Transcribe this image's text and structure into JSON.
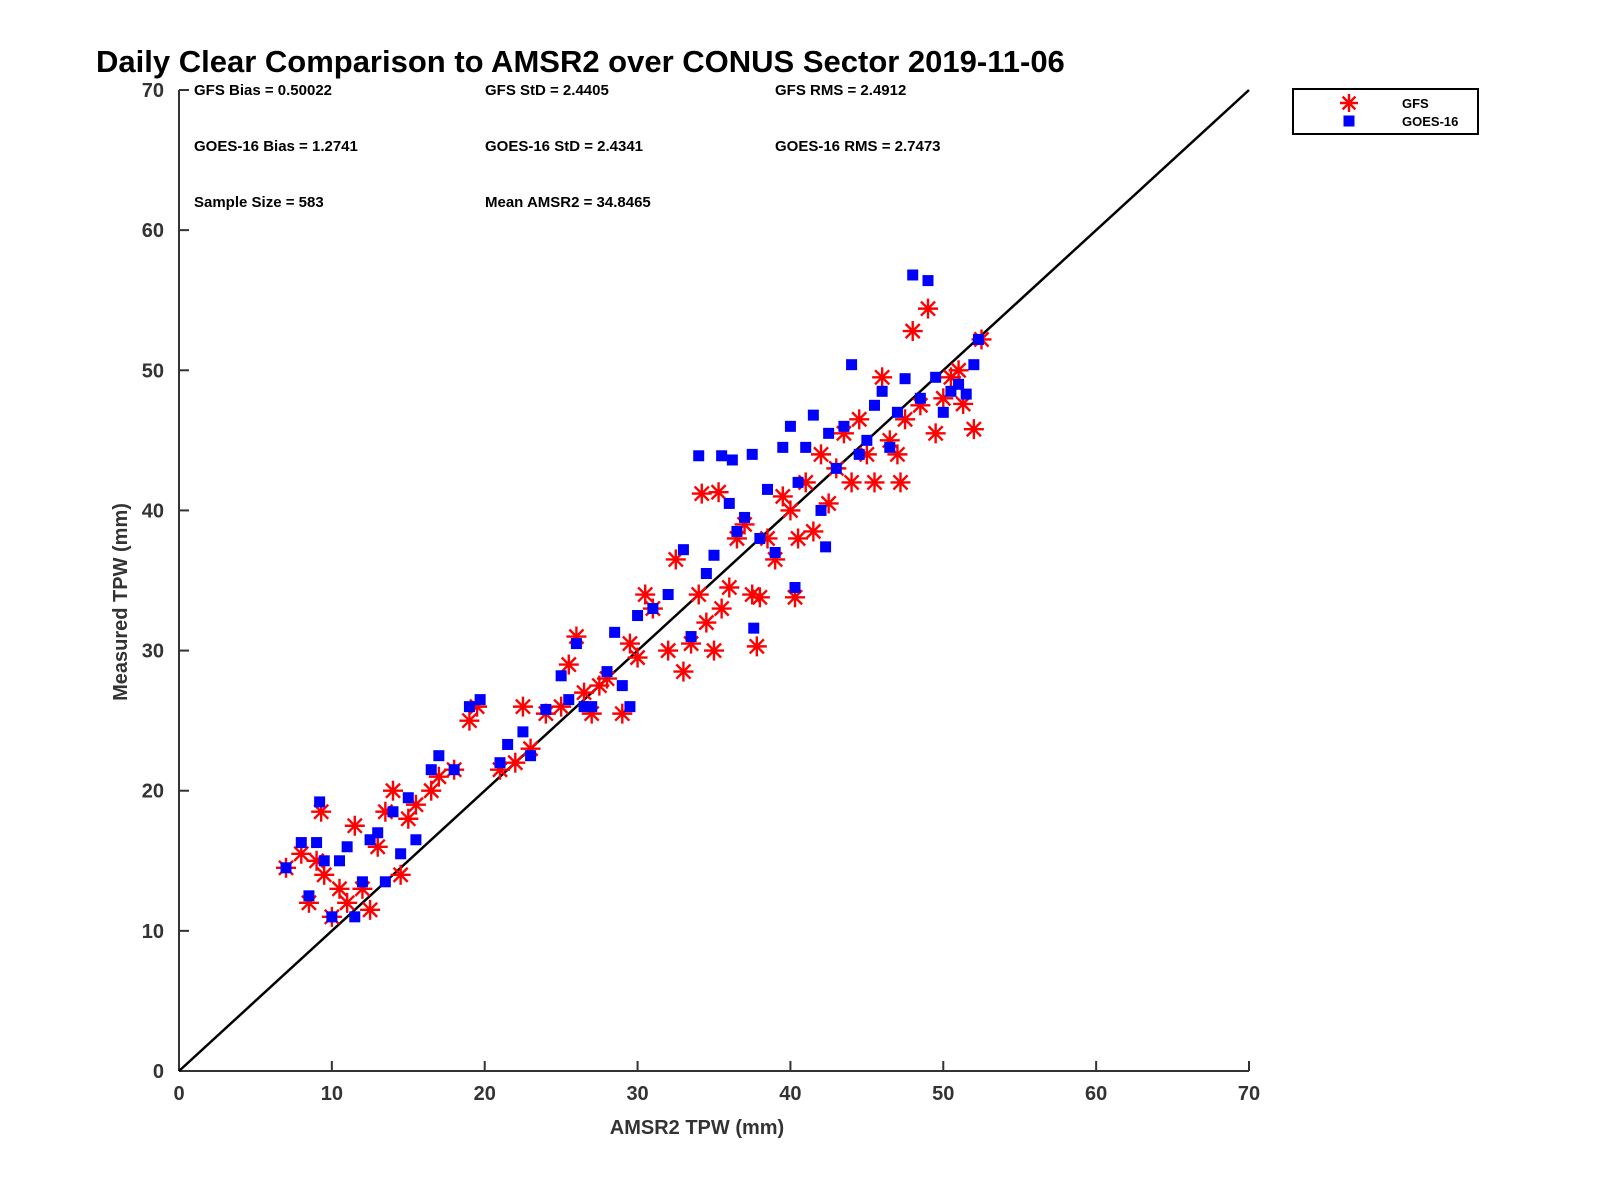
{
  "chart_data": {
    "type": "scatter",
    "title": "Daily Clear Comparison to AMSR2 over CONUS Sector 2019-11-06",
    "xlabel": "AMSR2 TPW (mm)",
    "ylabel": "Measured TPW (mm)",
    "xlim": [
      0,
      70
    ],
    "ylim": [
      0,
      70
    ],
    "xticks": [
      "0",
      "10",
      "20",
      "30",
      "40",
      "50",
      "60",
      "70"
    ],
    "yticks": [
      "0",
      "10",
      "20",
      "30",
      "40",
      "50",
      "60",
      "70"
    ],
    "grid": false,
    "legend_position": "outside-top-right",
    "stats": [
      {
        "text": "GFS Bias = 0.50022",
        "row": 0,
        "col": 0
      },
      {
        "text": "GFS StD = 2.4405",
        "row": 0,
        "col": 1
      },
      {
        "text": "GFS RMS = 2.4912",
        "row": 0,
        "col": 2
      },
      {
        "text": "GOES-16 Bias = 1.2741",
        "row": 1,
        "col": 0
      },
      {
        "text": "GOES-16 StD = 2.4341",
        "row": 1,
        "col": 1
      },
      {
        "text": "GOES-16 RMS = 2.7473",
        "row": 1,
        "col": 2
      },
      {
        "text": "Sample Size = 583",
        "row": 2,
        "col": 0
      },
      {
        "text": "Mean AMSR2 = 34.8465",
        "row": 2,
        "col": 1
      }
    ],
    "reference_line": {
      "x": [
        0,
        70
      ],
      "y": [
        0,
        70
      ],
      "color": "#000000"
    },
    "series": [
      {
        "name": "GFS",
        "marker": "asterisk",
        "color": "#ff0000",
        "points": [
          [
            7,
            14.5
          ],
          [
            8,
            15.5
          ],
          [
            8.5,
            12
          ],
          [
            9,
            15
          ],
          [
            9.3,
            18.5
          ],
          [
            9.5,
            14
          ],
          [
            10,
            11
          ],
          [
            10.5,
            13
          ],
          [
            11,
            12
          ],
          [
            11.5,
            17.5
          ],
          [
            12,
            13
          ],
          [
            12.5,
            11.5
          ],
          [
            13,
            16
          ],
          [
            13.5,
            18.5
          ],
          [
            14,
            20
          ],
          [
            14.5,
            14
          ],
          [
            15,
            18
          ],
          [
            15.5,
            19
          ],
          [
            16.5,
            20
          ],
          [
            17,
            21
          ],
          [
            18,
            21.5
          ],
          [
            19,
            25
          ],
          [
            19.5,
            26
          ],
          [
            21,
            21.5
          ],
          [
            22,
            22
          ],
          [
            22.5,
            26
          ],
          [
            23,
            23
          ],
          [
            24,
            25.5
          ],
          [
            25,
            26
          ],
          [
            25.5,
            29
          ],
          [
            26,
            31
          ],
          [
            26.5,
            27
          ],
          [
            27,
            25.5
          ],
          [
            27.5,
            27.5
          ],
          [
            28,
            28
          ],
          [
            29,
            25.5
          ],
          [
            29.5,
            30.5
          ],
          [
            30,
            29.5
          ],
          [
            30.5,
            34
          ],
          [
            31,
            33
          ],
          [
            32,
            30
          ],
          [
            32.5,
            36.5
          ],
          [
            33,
            28.5
          ],
          [
            33.5,
            30.5
          ],
          [
            34,
            34
          ],
          [
            34.2,
            41.2
          ],
          [
            34.5,
            32
          ],
          [
            35,
            30
          ],
          [
            35.3,
            41.3
          ],
          [
            35.5,
            33
          ],
          [
            36,
            34.5
          ],
          [
            36.5,
            38
          ],
          [
            37,
            39
          ],
          [
            37.5,
            34
          ],
          [
            37.8,
            30.3
          ],
          [
            38,
            33.8
          ],
          [
            38.5,
            38
          ],
          [
            39,
            36.5
          ],
          [
            39.5,
            41
          ],
          [
            40,
            40
          ],
          [
            40.3,
            33.8
          ],
          [
            40.5,
            38
          ],
          [
            41,
            42
          ],
          [
            41.5,
            38.5
          ],
          [
            42,
            44
          ],
          [
            42.5,
            40.5
          ],
          [
            43,
            43
          ],
          [
            43.5,
            45.5
          ],
          [
            44,
            42
          ],
          [
            44.5,
            46.5
          ],
          [
            45,
            44
          ],
          [
            45.5,
            42
          ],
          [
            46,
            49.5
          ],
          [
            46.5,
            45
          ],
          [
            47,
            44
          ],
          [
            47.2,
            42
          ],
          [
            47.5,
            46.5
          ],
          [
            48,
            52.8
          ],
          [
            48.5,
            47.5
          ],
          [
            49,
            54.4
          ],
          [
            49.5,
            45.5
          ],
          [
            50,
            48
          ],
          [
            50.5,
            49.5
          ],
          [
            51,
            50
          ],
          [
            51.3,
            47.6
          ],
          [
            52,
            45.8
          ],
          [
            52.5,
            52.2
          ]
        ]
      },
      {
        "name": "GOES-16",
        "marker": "square",
        "color": "#0000ff",
        "points": [
          [
            7,
            14.5
          ],
          [
            8,
            16.3
          ],
          [
            8.5,
            12.5
          ],
          [
            9,
            16.3
          ],
          [
            9.2,
            19.2
          ],
          [
            9.5,
            15
          ],
          [
            10,
            11
          ],
          [
            10.5,
            15
          ],
          [
            11,
            16
          ],
          [
            11.5,
            11
          ],
          [
            12,
            13.5
          ],
          [
            12.5,
            16.5
          ],
          [
            13,
            17
          ],
          [
            13.5,
            13.5
          ],
          [
            14,
            18.5
          ],
          [
            14.5,
            15.5
          ],
          [
            15,
            19.5
          ],
          [
            15.5,
            16.5
          ],
          [
            16.5,
            21.5
          ],
          [
            17,
            22.5
          ],
          [
            18,
            21.5
          ],
          [
            19,
            26
          ],
          [
            19.7,
            26.5
          ],
          [
            21,
            22
          ],
          [
            21.5,
            23.3
          ],
          [
            22.5,
            24.2
          ],
          [
            23,
            22.5
          ],
          [
            24,
            25.8
          ],
          [
            25,
            28.2
          ],
          [
            25.5,
            26.5
          ],
          [
            26,
            30.5
          ],
          [
            26.5,
            26
          ],
          [
            27,
            26
          ],
          [
            28,
            28.5
          ],
          [
            28.5,
            31.3
          ],
          [
            29,
            27.5
          ],
          [
            29.5,
            26
          ],
          [
            30,
            32.5
          ],
          [
            31,
            33
          ],
          [
            32,
            34
          ],
          [
            33,
            37.2
          ],
          [
            33.5,
            31
          ],
          [
            34,
            43.9
          ],
          [
            34.5,
            35.5
          ],
          [
            35,
            36.8
          ],
          [
            35.5,
            43.9
          ],
          [
            36,
            40.5
          ],
          [
            36.2,
            43.6
          ],
          [
            36.5,
            38.5
          ],
          [
            37,
            39.5
          ],
          [
            37.5,
            44
          ],
          [
            37.6,
            31.6
          ],
          [
            38,
            38
          ],
          [
            38.5,
            41.5
          ],
          [
            39,
            37
          ],
          [
            39.5,
            44.5
          ],
          [
            40,
            46
          ],
          [
            40.3,
            34.5
          ],
          [
            40.5,
            42
          ],
          [
            41,
            44.5
          ],
          [
            41.5,
            46.8
          ],
          [
            42,
            40
          ],
          [
            42.3,
            37.4
          ],
          [
            42.5,
            45.5
          ],
          [
            43,
            43
          ],
          [
            43.5,
            46
          ],
          [
            44,
            50.4
          ],
          [
            44.5,
            44
          ],
          [
            45,
            45
          ],
          [
            45.5,
            47.5
          ],
          [
            46,
            48.5
          ],
          [
            46.5,
            44.5
          ],
          [
            47,
            47
          ],
          [
            47.5,
            49.4
          ],
          [
            48,
            56.8
          ],
          [
            48.5,
            48
          ],
          [
            49,
            56.4
          ],
          [
            49.5,
            49.5
          ],
          [
            50,
            47
          ],
          [
            50.5,
            48.5
          ],
          [
            51,
            49
          ],
          [
            51.5,
            48.3
          ],
          [
            52,
            50.4
          ],
          [
            52.3,
            52.2
          ]
        ]
      }
    ]
  }
}
